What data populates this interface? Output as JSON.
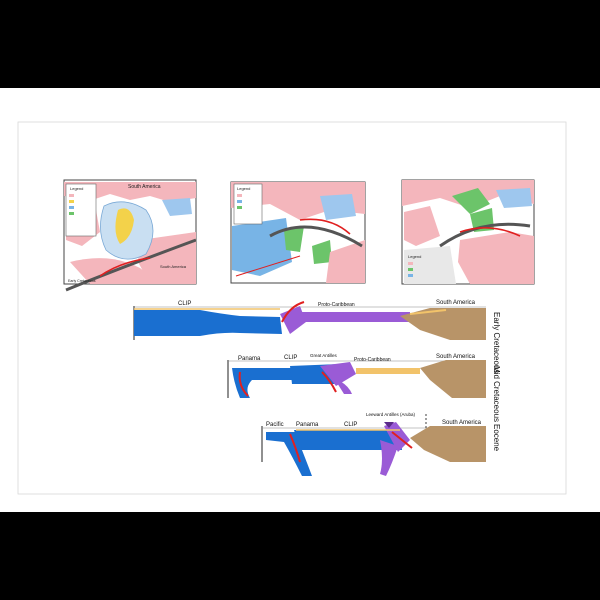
{
  "maps": {
    "map1": {
      "title": "South America",
      "legend_title": "Legend",
      "inset_label": "South America",
      "caption": "Early Cretaceous"
    },
    "map2": {
      "legend_title": "Legend"
    },
    "map3": {
      "legend_title": "Legend"
    }
  },
  "sections": {
    "early": {
      "title": "Early Cretaceous",
      "labels": {
        "clip": "CLIP",
        "proto_caribbean": "Proto-Caribbean",
        "south_america": "South America"
      }
    },
    "mid": {
      "title": "Mid Cretaceous",
      "labels": {
        "panama": "Panama",
        "clip": "CLIP",
        "great_antilles": "Great Antilles",
        "proto_caribbean": "Proto-Caribbean",
        "south_america": "South America"
      }
    },
    "eocene": {
      "title": "Eocene",
      "labels": {
        "pacific": "Pacific",
        "panama": "Panama",
        "clip": "CLIP",
        "leeward": "Leeward Antilles (Aruba)",
        "south_america": "South America"
      }
    }
  },
  "colors": {
    "background": "#000000",
    "page": "#ffffff",
    "oceanic_plate": "#1a6fd0",
    "proto_caribbean_plate": "#9a5bd6",
    "subduction_fault": "#e02020",
    "south_america_crust": "#b89468",
    "sediment": "#f2c36a",
    "map_pink": "#f4b6bc",
    "map_green": "#6cc46a",
    "map_blue": "#78b4e6",
    "map_yellow": "#f3d24a"
  }
}
